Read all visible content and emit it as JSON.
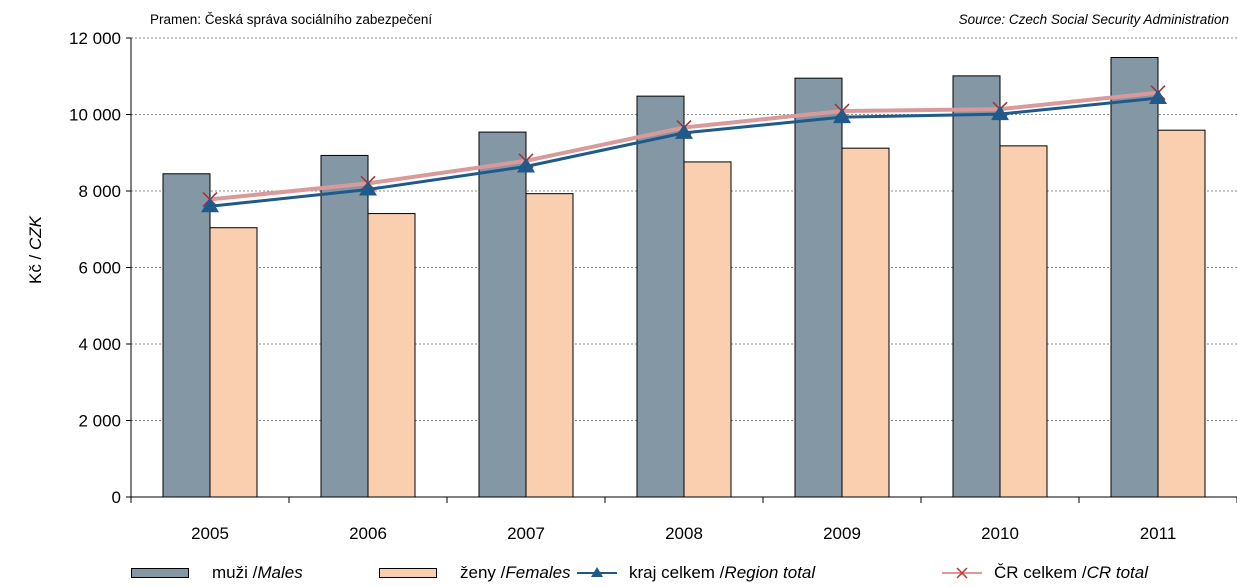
{
  "chart_data": {
    "type": "bar",
    "source_left": "Pramen: Česká správa sociálního zabezpečení",
    "source_right": "Source: Czech Social Security Administration",
    "ylabel": {
      "cz": "Kč / ",
      "en": "CZK"
    },
    "ylim": [
      0,
      12000
    ],
    "yticks": [
      0,
      2000,
      4000,
      6000,
      8000,
      10000,
      12000
    ],
    "ytick_labels": [
      "0",
      "2 000",
      "4 000",
      "6 000",
      "8 000",
      "10 000",
      "12 000"
    ],
    "categories": [
      "2005",
      "2006",
      "2007",
      "2008",
      "2009",
      "2010",
      "2011"
    ],
    "grid": true,
    "legend_position": "bottom",
    "series": [
      {
        "name_cz": "muži / ",
        "name_en": "Males",
        "kind": "bar",
        "color": "#8497a4",
        "values": [
          8450,
          8930,
          9540,
          10480,
          10950,
          11010,
          11490
        ]
      },
      {
        "name_cz": "ženy / ",
        "name_en": "Females",
        "kind": "bar",
        "color": "#f9cfaf",
        "values": [
          7040,
          7410,
          7930,
          8760,
          9120,
          9180,
          9590
        ]
      },
      {
        "name_cz": "kraj celkem / ",
        "name_en": "Region total",
        "kind": "line",
        "color": "#1f5a8a",
        "marker": "triangle",
        "values": [
          7600,
          8040,
          8640,
          9520,
          9930,
          10010,
          10430
        ]
      },
      {
        "name_cz": "ČR celkem / ",
        "name_en": "CR total",
        "kind": "line",
        "color": "#d89a9a",
        "marker": "x",
        "values": [
          7780,
          8200,
          8790,
          9660,
          10090,
          10140,
          10570
        ]
      }
    ]
  }
}
